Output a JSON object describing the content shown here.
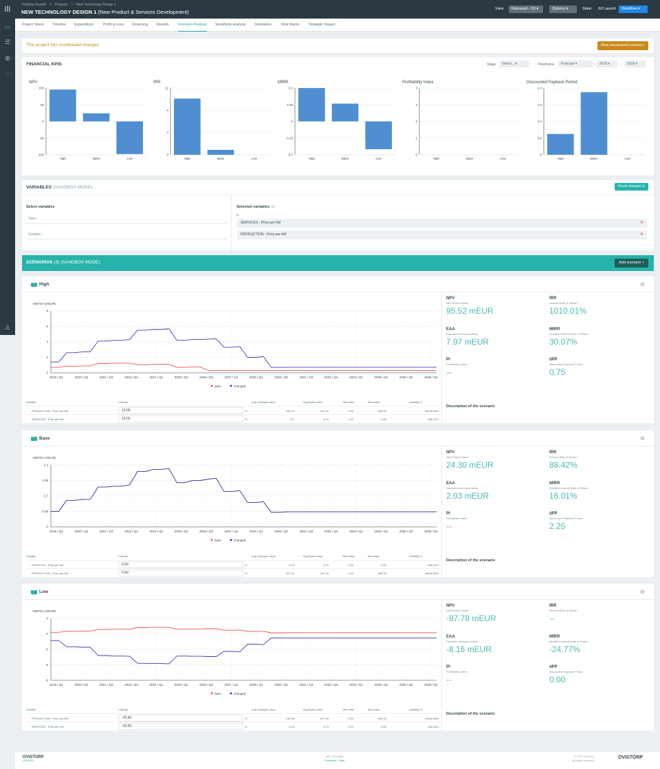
{
  "header": {
    "breadcrumbs": [
      "Ovistorp Growth",
      ">",
      "Projects",
      ">",
      "New Technology Design 1"
    ],
    "title": "NEW TECHNOLOGY DESIGN 1",
    "subtitle": "(New Product & Services Development)",
    "view_label": "View:",
    "view_value": "Released - S3",
    "options_label": "Options",
    "state_label": "State:",
    "state_value": "S3 Launch",
    "workflow_label": "Workflow"
  },
  "tabs": [
    "Project Sheet",
    "Timeline",
    "Expenditure",
    "Profit & Loss",
    "Financing",
    "Results",
    "Scenario Analysis",
    "Sensitivity analysis",
    "Simulation",
    "Risk Matrix",
    "Strategic Impact"
  ],
  "active_tab": "Scenario Analysis",
  "warning": {
    "text": "This project has unreleased changes",
    "button": "View unreleased version"
  },
  "kpis": {
    "title": "FINANCIAL KPIS",
    "stage_label": "Stage:",
    "stage_value": "Select...",
    "timeframe_label": "Timeframe:",
    "timeframe_value": "Forecast",
    "sep": "/",
    "from_year": "2018",
    "dash": "-",
    "to_year": "2028"
  },
  "chart_data": [
    {
      "type": "bar",
      "title": "NPV",
      "categories": [
        "High",
        "Base",
        "Low"
      ],
      "values": [
        95.52,
        24.3,
        -97.78
      ],
      "ylim": [
        -100,
        100
      ],
      "yticks": [
        "100",
        "50",
        "0",
        "-50",
        "-100"
      ]
    },
    {
      "type": "bar",
      "title": "IRR",
      "categories": [
        "High",
        "Base",
        "Low"
      ],
      "values": [
        10.1,
        0.88,
        0
      ],
      "ylim": [
        0,
        12
      ],
      "yticks": [
        "12",
        "8",
        "4",
        "0"
      ]
    },
    {
      "type": "bar",
      "title": "MIRR",
      "categories": [
        "High",
        "Base",
        "Low"
      ],
      "values": [
        0.3,
        0.16,
        -0.25
      ],
      "ylim": [
        -0.3,
        0.3
      ],
      "yticks": [
        "0.3",
        "0.15",
        "0",
        "-0.15",
        "-0.3"
      ]
    },
    {
      "type": "bar",
      "title": "Profitability Index",
      "categories": [
        "High",
        "Base",
        "Low"
      ],
      "values": [
        0,
        0,
        0
      ],
      "ylim": [
        0,
        4
      ],
      "yticks": [
        "4",
        "3",
        "2",
        "1",
        "0"
      ]
    },
    {
      "type": "bar",
      "title": "Discounted Payback Period",
      "categories": [
        "High",
        "Base",
        "Low"
      ],
      "values": [
        0.75,
        2.25,
        0
      ],
      "ylim": [
        0,
        2.4
      ],
      "yticks": [
        "2.4",
        "1.8",
        "1.2",
        "0.6",
        "0"
      ]
    }
  ],
  "variables": {
    "title": "VARIABLES",
    "sub": "(SANDBOX MODE)",
    "reset": "Reset changes",
    "select_label": "Select variables",
    "type_ph": "Type...",
    "variable_ph": "Variable...",
    "selected_label": "Selected variables",
    "selected_count": "(2)",
    "unit": "μ",
    "chips": [
      "SERVICES - Price per kW",
      "PRODUCTION - Price per kW"
    ]
  },
  "scenarios_bar": {
    "title": "SCENARIOS",
    "count": "(3)",
    "sub": "(SANDBOX MODE)",
    "add": "Add scenario"
  },
  "line_axis": {
    "ytitle": "EBITDA (mEUR)",
    "xticks": [
      "2019 / Q1",
      "2020 / Q2",
      "2021 / Q3",
      "2022 / Q4",
      "2024 / Q1",
      "2025 / Q2",
      "2026 / Q3",
      "2027 / Q4",
      "2029 / Q1",
      "2030 / Q2",
      "2031 / Q3",
      "2032 / Q4",
      "2034 / Q1",
      "2035 / Q2",
      "2036 / Q3",
      "2038 / Q1"
    ],
    "legend": [
      "base",
      "changed"
    ]
  },
  "table_heads": {
    "variable": "Variable",
    "change": "Change",
    "avg_changed": "Avg Changed value",
    "avg_base": "Avg Base Value",
    "min_base": "Min base",
    "max_base": "Max base",
    "volatility": "Volatility %",
    "pct": "%"
  },
  "kpi_labels": {
    "npv": "NPV",
    "npv_sub": "Net Present Value",
    "irr": "IRR",
    "irr_sub": "Internal Rate of Return",
    "eaa": "EAA",
    "eaa_sub": "Equivalent Annual Annuity",
    "mirr": "MIRR",
    "mirr_sub": "Modified Internal Rate of Return",
    "pi": "PI",
    "pi_sub": "Profitability Index",
    "dpp": "dPP",
    "dpp_sub": "discounted Payback Period",
    "desc": "Description of the scenario"
  },
  "scenarios": [
    {
      "name": "High",
      "ymin": 0,
      "ymax": 8,
      "yticks": [
        "8",
        "6",
        "4",
        "2",
        "0"
      ],
      "base": [
        0.7,
        0.7,
        0.85,
        0.85,
        0.9,
        0.9,
        1.2,
        1.2,
        1.25,
        1.25,
        1.25,
        1.05,
        1.05,
        1.1,
        1.1,
        1.1,
        0.7,
        0.7,
        0.75,
        0.75,
        0.3,
        0.3,
        0.3,
        0.3,
        0.3,
        0.3,
        0.3,
        0.3,
        0.3,
        0.3,
        0.3,
        0.3,
        0.3,
        0.3,
        0.3,
        0.3,
        0.3,
        0.3,
        0.3,
        0.3,
        0.3,
        0.3,
        0.3,
        0.3,
        0.3,
        0.3,
        0.3,
        0.3,
        0.3,
        0.3
      ],
      "changed": [
        1.4,
        1.4,
        2.6,
        2.6,
        2.7,
        2.7,
        4.1,
        4.1,
        4.2,
        4.2,
        4.3,
        5.5,
        5.5,
        5.6,
        5.6,
        5.7,
        4.2,
        4.2,
        4.3,
        4.3,
        4.35,
        4.4,
        3.3,
        3.3,
        3.4,
        2.0,
        2.0,
        2.1,
        0.7,
        0.7,
        0.72,
        0.72,
        0.72,
        0.72,
        0.72,
        0.72,
        0.72,
        0.72,
        0.72,
        0.72,
        0.72,
        0.72,
        0.72,
        0.72,
        0.72,
        0.72,
        0.72,
        0.72,
        0.72,
        0.72
      ],
      "kpis": {
        "npv": "95.52 mEUR",
        "irr": "1010.01%",
        "eaa": "7.97 mEUR",
        "mirr": "30.07%",
        "pi": "--",
        "dpp": "0.75"
      },
      "rows": [
        {
          "var": "PRODUCTION - Price per kW",
          "change": "10.00",
          "avg_changed": "184.19",
          "avg_base": "167.44",
          "min": "0.00",
          "max": "480.00",
          "vol": "18048.95%"
        },
        {
          "var": "SERVICES - Price per kW",
          "change": "10.00",
          "avg_changed": "7.47",
          "avg_base": "6.79",
          "min": "0.00",
          "max": "9.00",
          "vol": "286.23%"
        }
      ]
    },
    {
      "name": "Base",
      "ymin": 0,
      "ymax": 1.4,
      "yticks": [
        "1.4",
        "1.05",
        "0.7",
        "0.35",
        "0"
      ],
      "base": [
        0.35,
        0.35,
        0.6,
        0.6,
        0.62,
        0.62,
        0.9,
        0.9,
        0.92,
        0.92,
        0.95,
        1.25,
        1.25,
        1.3,
        1.3,
        1.32,
        1.0,
        1.0,
        1.05,
        1.05,
        1.08,
        1.1,
        0.8,
        0.8,
        0.82,
        0.55,
        0.55,
        0.57,
        0.33,
        0.33,
        0.34,
        0.34,
        0.34,
        0.34,
        0.34,
        0.34,
        0.34,
        0.34,
        0.34,
        0.34,
        0.34,
        0.34,
        0.34,
        0.34,
        0.34,
        0.34,
        0.34,
        0.34,
        0.34,
        0.34
      ],
      "changed": [
        0.35,
        0.35,
        0.6,
        0.6,
        0.62,
        0.62,
        0.9,
        0.9,
        0.92,
        0.92,
        0.95,
        1.25,
        1.25,
        1.3,
        1.3,
        1.32,
        1.0,
        1.0,
        1.05,
        1.05,
        1.08,
        1.1,
        0.8,
        0.8,
        0.82,
        0.55,
        0.55,
        0.57,
        0.33,
        0.33,
        0.34,
        0.34,
        0.34,
        0.34,
        0.34,
        0.34,
        0.34,
        0.34,
        0.34,
        0.34,
        0.34,
        0.34,
        0.34,
        0.34,
        0.34,
        0.34,
        0.34,
        0.34,
        0.34,
        0.34
      ],
      "kpis": {
        "npv": "24.30 mEUR",
        "irr": "88.42%",
        "eaa": "2.03 mEUR",
        "mirr": "16.01%",
        "pi": "--",
        "dpp": "2.25"
      },
      "rows": [
        {
          "var": "SERVICES - Price per kW",
          "change": "0.00",
          "avg_changed": "6.79",
          "avg_base": "6.79",
          "min": "0.00",
          "max": "9.00",
          "vol": "286.23%"
        },
        {
          "var": "PRODUCTION - Price per kW",
          "change": "0.00",
          "avg_changed": "167.44",
          "avg_base": "167.44",
          "min": "0.00",
          "max": "480.00",
          "vol": "18048.95%"
        }
      ]
    },
    {
      "name": "Low",
      "ymin": -9,
      "ymax": 3,
      "yticks": [
        "3",
        "0",
        "-3",
        "-6",
        "-9"
      ],
      "base": [
        0.3,
        0.3,
        0.5,
        0.5,
        0.55,
        0.55,
        0.85,
        0.85,
        0.9,
        0.9,
        0.9,
        1.2,
        1.2,
        1.25,
        1.25,
        1.25,
        0.9,
        0.9,
        0.95,
        0.95,
        1.0,
        1.0,
        0.7,
        0.7,
        0.75,
        0.45,
        0.45,
        0.5,
        0.2,
        0.2,
        0.22,
        0.22,
        0.22,
        0.22,
        0.22,
        0.22,
        0.22,
        0.22,
        0.22,
        0.22,
        0.22,
        0.22,
        0.22,
        0.22,
        0.22,
        0.22,
        0.22,
        0.22,
        0.22,
        0.22
      ],
      "changed": [
        -1.3,
        -1.3,
        -2.5,
        -2.5,
        -2.6,
        -2.6,
        -4.2,
        -4.2,
        -4.3,
        -4.3,
        -4.35,
        -5.7,
        -5.7,
        -5.75,
        -5.75,
        -5.8,
        -4.3,
        -4.3,
        -4.35,
        -4.35,
        -4.4,
        -4.4,
        -3.4,
        -3.4,
        -3.5,
        -2.0,
        -2.0,
        -2.1,
        -0.8,
        -0.8,
        -0.82,
        -0.82,
        -0.82,
        -0.82,
        -0.82,
        -0.82,
        -0.82,
        -0.82,
        -0.82,
        -0.82,
        -0.82,
        -0.82,
        -0.82,
        -0.82,
        -0.82,
        -0.82,
        -0.82,
        -0.82,
        -0.82,
        -0.82
      ],
      "kpis": {
        "npv": "-97.78 mEUR",
        "irr": "--",
        "eaa": "-8.16 mEUR",
        "mirr": "-24.77%",
        "pi": "--",
        "dpp": "0.00"
      },
      "rows": [
        {
          "var": "PRODUCTION - Price per kW",
          "change": "-20.00",
          "avg_changed": "133.95",
          "avg_base": "167.44",
          "min": "0.00",
          "max": "480.00",
          "vol": "18048.95%"
        },
        {
          "var": "SERVICES - Price per kW",
          "change": "-20.00",
          "avg_changed": "5.43",
          "avg_base": "6.79",
          "min": "0.00",
          "max": "9.00",
          "vol": "286.23%"
        }
      ]
    }
  ],
  "colors": {
    "teal": "#26b3aa",
    "bar": "#4f8fd1",
    "base_line": "#e5534b",
    "changed_line": "#3f3bb0",
    "warn": "#c98a1b"
  },
  "footer": {
    "logo": "OVISTORP",
    "logo_sub": "GROWTH",
    "version": "ver. 1.0.0 beta",
    "feedback": "Feedback",
    "help": "Help",
    "copyright": "© 2018 Ovistorp",
    "rights": "All rights reserved",
    "logo_right": "OVISTORP"
  }
}
